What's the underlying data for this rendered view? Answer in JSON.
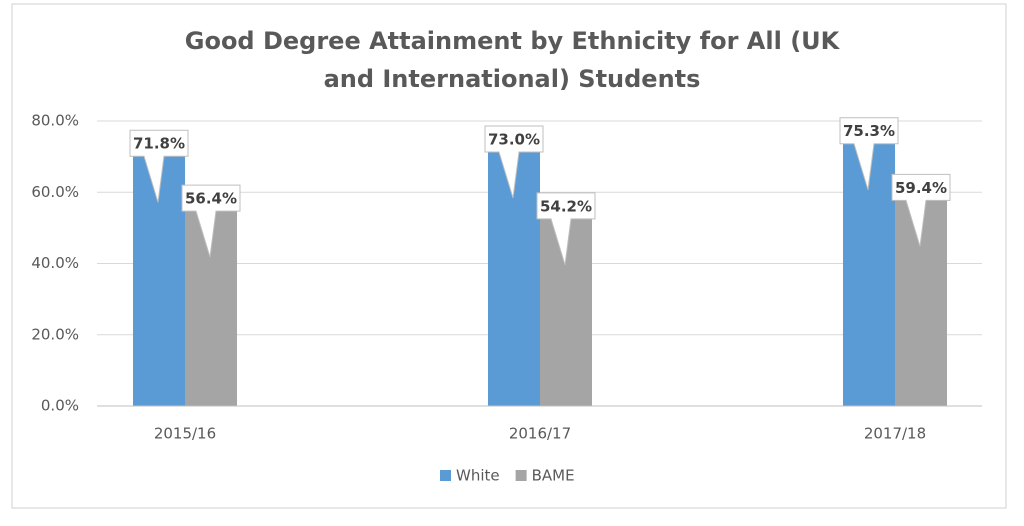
{
  "chart_data": {
    "type": "bar",
    "title": "Good Degree Attainment by Ethnicity for All (UK and International) Students",
    "categories": [
      "2015/16",
      "2016/17",
      "2017/18"
    ],
    "series": [
      {
        "name": "White",
        "color": "#5b9bd5",
        "values": [
          71.8,
          73.0,
          75.3
        ],
        "value_labels": [
          "71.8%",
          "73.0%",
          "75.3%"
        ]
      },
      {
        "name": "BAME",
        "color": "#a5a5a5",
        "values": [
          56.4,
          54.2,
          59.4
        ],
        "value_labels": [
          "56.4%",
          "54.2%",
          "59.4%"
        ]
      }
    ],
    "ylim": [
      0,
      80
    ],
    "yticks": [
      {
        "value": 0,
        "label": "0.0%"
      },
      {
        "value": 20,
        "label": "20.0%"
      },
      {
        "value": 40,
        "label": "40.0%"
      },
      {
        "value": 60,
        "label": "60.0%"
      },
      {
        "value": 80,
        "label": "80.0%"
      }
    ],
    "grid": true,
    "legend": "bottom"
  }
}
